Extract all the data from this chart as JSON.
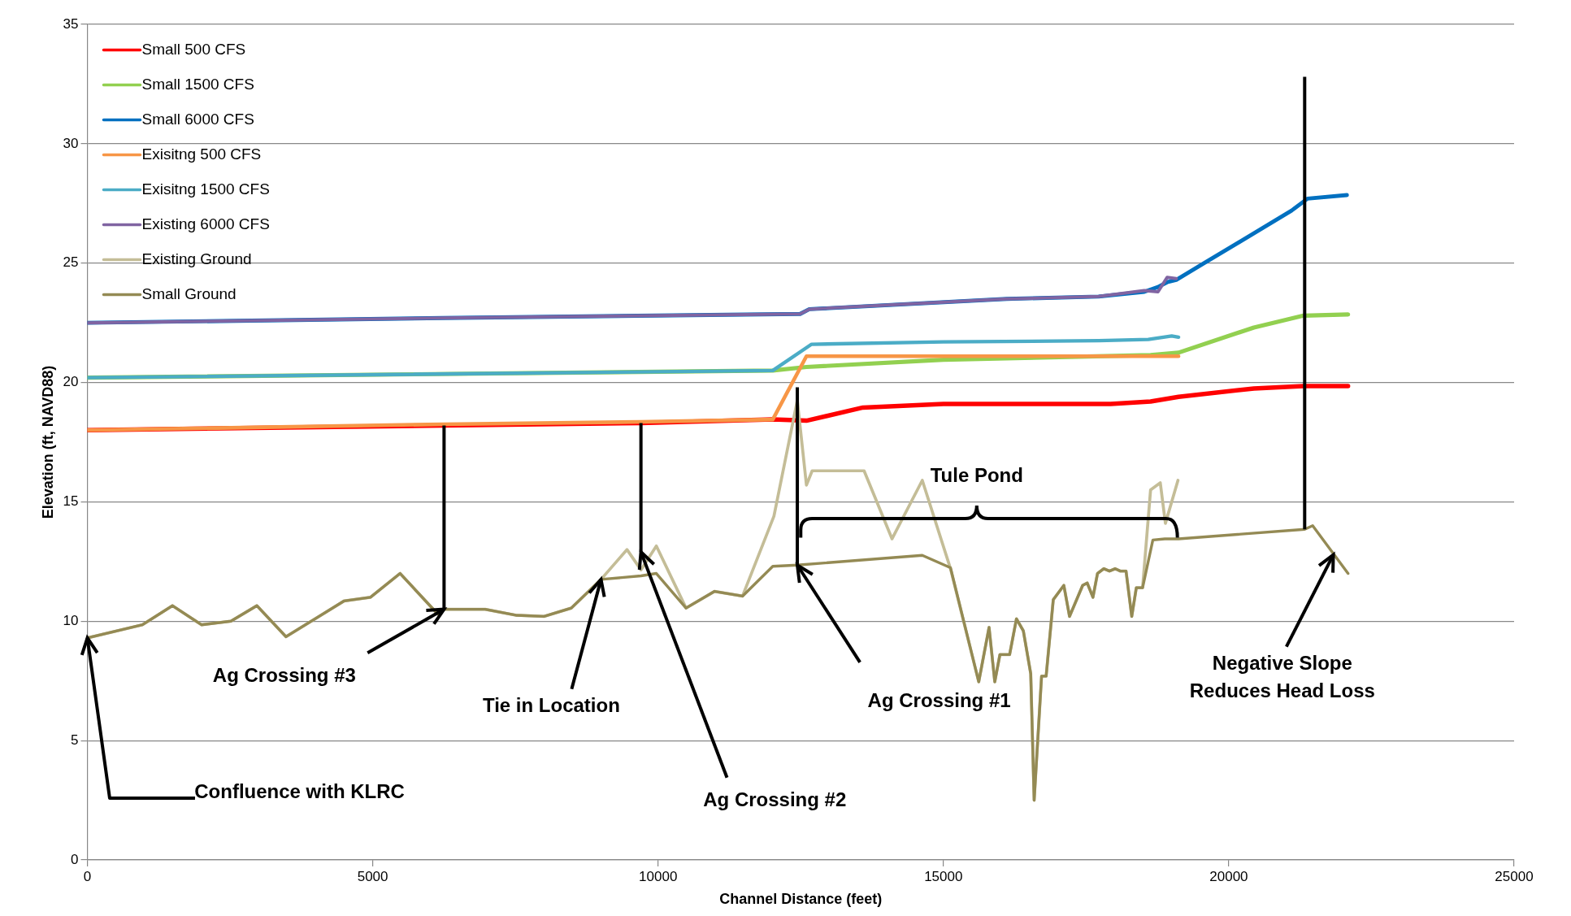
{
  "chart_data": {
    "type": "line",
    "xlabel": "Channel Distance (feet)",
    "ylabel": "Elevation (ft, NAVD88)",
    "xlim": [
      0,
      25000
    ],
    "xticks": [
      0,
      5000,
      10000,
      15000,
      20000,
      25000
    ],
    "ylim": [
      0,
      35
    ],
    "yticks": [
      0,
      5,
      10,
      15,
      20,
      25,
      30,
      35
    ],
    "grid": "y",
    "legend": "top left",
    "marker": "none",
    "line_style": "solid",
    "series": [
      {
        "name": "Small 500 CFS",
        "color": "#ff0000",
        "x": [
          0,
          6230,
          9700,
          12010,
          12600,
          13590,
          15000,
          17930,
          18630,
          19120,
          20440,
          21310,
          22090
        ],
        "values": [
          18.0,
          18.2,
          18.3,
          18.45,
          18.4,
          18.95,
          19.1,
          19.1,
          19.2,
          19.4,
          19.75,
          19.85,
          19.85
        ]
      },
      {
        "name": "Small 1500 CFS",
        "color": "#92d050",
        "x": [
          0,
          12010,
          12600,
          15000,
          18630,
          19120,
          20440,
          21310,
          22090
        ],
        "values": [
          20.2,
          20.5,
          20.65,
          20.95,
          21.15,
          21.25,
          22.3,
          22.8,
          22.85
        ]
      },
      {
        "name": "Small 6000 CFS",
        "color": "#0070c0",
        "x": [
          0,
          6230,
          12490,
          12650,
          16110,
          17720,
          18520,
          18760,
          18920,
          19080,
          19570,
          21100,
          21380,
          22070
        ],
        "values": [
          22.5,
          22.7,
          22.87,
          23.07,
          23.5,
          23.6,
          23.8,
          24.0,
          24.2,
          24.3,
          25.0,
          27.2,
          27.7,
          27.85
        ]
      },
      {
        "name": "Exisitng 500 CFS",
        "color": "#f79646",
        "x": [
          0,
          6230,
          9700,
          12010,
          12600,
          19120
        ],
        "values": [
          18.0,
          18.25,
          18.35,
          18.45,
          21.1,
          21.1
        ]
      },
      {
        "name": "Exisitng 1500 CFS",
        "color": "#4bacc6",
        "x": [
          0,
          12010,
          12690,
          15000,
          17720,
          18590,
          19000,
          19120
        ],
        "values": [
          20.2,
          20.5,
          21.6,
          21.7,
          21.75,
          21.8,
          21.95,
          21.9
        ]
      },
      {
        "name": "Existing 6000 CFS",
        "color": "#8064a2",
        "x": [
          0,
          6230,
          12490,
          12650,
          16110,
          17720,
          18520,
          18760,
          18920,
          19080
        ],
        "values": [
          22.5,
          22.7,
          22.87,
          23.07,
          23.5,
          23.6,
          23.85,
          23.8,
          24.4,
          24.35
        ]
      },
      {
        "name": "Existing Ground",
        "color": "#c4bd97",
        "x": [
          0,
          965,
          1490,
          2000,
          2515,
          2970,
          3480,
          3990,
          4500,
          4960,
          5480,
          6140,
          6250,
          6970,
          7510,
          8000,
          8480,
          9000,
          9455,
          9700,
          9970,
          10490,
          10990,
          11480,
          12030,
          12440,
          12600,
          12700,
          13610,
          14100,
          14630,
          15124,
          15619,
          15800,
          15900,
          15990,
          16160,
          16280,
          16400,
          16530,
          16590,
          16720,
          16800,
          16925,
          17110,
          17210,
          17440,
          17520,
          17620,
          17700,
          17810,
          17910,
          18010,
          18100,
          18200,
          18300,
          18380,
          18490,
          18630,
          18800,
          18890,
          19110
        ],
        "values": [
          9.3,
          9.85,
          10.65,
          9.85,
          10.0,
          10.65,
          9.35,
          10.1,
          10.85,
          11.0,
          12.0,
          10.3,
          10.5,
          10.5,
          10.25,
          10.2,
          10.55,
          11.75,
          13.0,
          12.15,
          13.15,
          10.55,
          11.25,
          11.05,
          14.4,
          19.25,
          15.7,
          16.3,
          16.3,
          13.45,
          15.9,
          12.2,
          7.46,
          9.74,
          7.46,
          8.6,
          8.6,
          10.1,
          9.6,
          7.8,
          2.5,
          7.7,
          7.7,
          10.9,
          11.5,
          10.2,
          11.5,
          11.6,
          11.0,
          12.0,
          12.2,
          12.1,
          12.2,
          12.1,
          12.1,
          10.2,
          11.4,
          11.4,
          15.5,
          15.8,
          14.1,
          15.9
        ]
      },
      {
        "name": "Small Ground",
        "color": "#948a54",
        "x": [
          0,
          965,
          1490,
          2000,
          2515,
          2970,
          3480,
          3990,
          4500,
          4960,
          5480,
          6140,
          6250,
          6970,
          7510,
          8000,
          8480,
          9000,
          9700,
          9970,
          10490,
          10990,
          11480,
          12010,
          12440,
          14630,
          15124,
          15619,
          15800,
          15900,
          15990,
          16160,
          16280,
          16400,
          16530,
          16590,
          16720,
          16800,
          16925,
          17110,
          17210,
          17440,
          17520,
          17620,
          17700,
          17810,
          17910,
          18010,
          18100,
          18200,
          18300,
          18380,
          18490,
          18670,
          18880,
          19120,
          21330,
          21470,
          22090
        ],
        "values": [
          9.3,
          9.85,
          10.65,
          9.85,
          10.0,
          10.65,
          9.35,
          10.1,
          10.85,
          11.0,
          12.0,
          10.3,
          10.5,
          10.5,
          10.25,
          10.2,
          10.55,
          11.75,
          11.9,
          12.0,
          10.55,
          11.25,
          11.05,
          12.3,
          12.35,
          12.76,
          12.24,
          7.46,
          9.74,
          7.46,
          8.6,
          8.6,
          10.1,
          9.6,
          7.8,
          2.5,
          7.7,
          7.7,
          10.9,
          11.5,
          10.2,
          11.5,
          11.6,
          11.0,
          12.0,
          12.2,
          12.1,
          12.2,
          12.1,
          12.1,
          10.2,
          11.4,
          11.4,
          13.4,
          13.45,
          13.45,
          13.85,
          14.0,
          12.0
        ]
      }
    ],
    "annotations": [
      {
        "text": "Confluence with KLRC",
        "x": 0,
        "y": 9.3
      },
      {
        "text": "Ag Crossing #3",
        "x": 6250,
        "y": 10.5
      },
      {
        "text": "Tie in Location",
        "x": 9000,
        "y": 11.75
      },
      "Ag Crossing #2",
      "Ag Crossing #1",
      {
        "text": "Negative Slope\nReduces Head Loss",
        "x": 21832,
        "y": 12.78
      },
      "Tule Pond"
    ]
  }
}
